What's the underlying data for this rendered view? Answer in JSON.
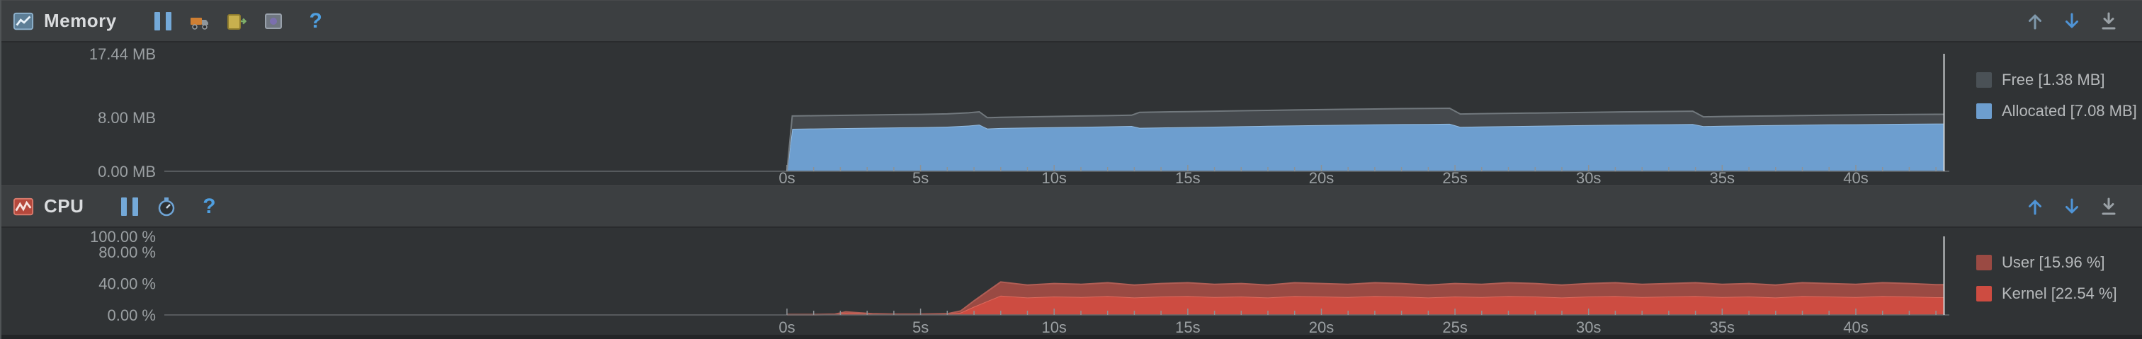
{
  "memory_panel": {
    "title": "Memory",
    "help_label": "?",
    "legend": [
      {
        "label": "Free [1.38 MB]",
        "color": "#4a5156"
      },
      {
        "label": "Allocated [7.08 MB]",
        "color": "#6d9ecf"
      }
    ]
  },
  "cpu_panel": {
    "title": "CPU",
    "help_label": "?",
    "legend": [
      {
        "label": "User [15.96 %]",
        "color": "#9a4a43"
      },
      {
        "label": "Kernel [22.54 %]",
        "color": "#cd4c41"
      }
    ]
  },
  "colors": {
    "header_bg": "#3c3f41",
    "chart_bg": "#303335",
    "axis_text": "#9ba0a3",
    "baseline": "#63686b",
    "tick": "#8d9296"
  },
  "chart_data": [
    {
      "type": "area",
      "title": "Memory",
      "ylabel": "MB",
      "stacked": true,
      "x_range": [
        -23.3,
        43.5
      ],
      "y_max": 17.44,
      "x_ticks_major": [
        0,
        5,
        10,
        15,
        20,
        25,
        30,
        35,
        40
      ],
      "x_tick_unit": "s",
      "x_minor_from": 0,
      "x_minor_to": 43,
      "y_ticks": [
        {
          "v": 17.44,
          "label": "17.44 MB"
        },
        {
          "v": 8,
          "label": "8.00 MB"
        },
        {
          "v": 0,
          "label": "0.00 MB"
        }
      ],
      "cursor_color": "#ced1d3",
      "t": [
        0,
        0.2,
        1,
        2,
        3,
        4,
        5,
        6,
        6.8,
        7.2,
        7.5,
        8,
        9,
        10,
        11,
        12,
        12.9,
        13.2,
        14,
        15,
        16,
        17,
        18,
        19,
        20,
        21,
        22,
        23,
        24,
        24.8,
        25.2,
        26,
        27,
        28,
        29,
        30,
        31,
        32,
        33,
        33.9,
        34.3,
        35,
        36,
        37,
        38,
        39,
        40,
        41,
        42,
        43,
        43.3
      ],
      "series": [
        {
          "name": "Allocated",
          "current": "7.08 MB",
          "color": "#6d9ecf",
          "stroke": "#93bce2",
          "values": [
            0,
            6.3,
            6.35,
            6.4,
            6.45,
            6.5,
            6.55,
            6.62,
            6.78,
            6.92,
            6.35,
            6.42,
            6.48,
            6.54,
            6.6,
            6.66,
            6.72,
            6.45,
            6.5,
            6.56,
            6.62,
            6.68,
            6.74,
            6.8,
            6.85,
            6.9,
            6.95,
            7.0,
            7.02,
            7.05,
            6.6,
            6.65,
            6.7,
            6.75,
            6.8,
            6.85,
            6.9,
            6.94,
            6.98,
            7.02,
            6.7,
            6.75,
            6.8,
            6.85,
            6.9,
            6.95,
            6.98,
            7.02,
            7.05,
            7.08,
            7.08
          ]
        },
        {
          "name": "Free",
          "current": "1.38 MB",
          "color": "#45494d",
          "stroke": "#71787d",
          "values": [
            0,
            1.9,
            1.9,
            1.9,
            1.9,
            1.9,
            1.9,
            1.9,
            1.9,
            1.9,
            1.6,
            1.6,
            1.6,
            1.6,
            1.6,
            1.6,
            1.6,
            2.3,
            2.3,
            2.3,
            2.3,
            2.3,
            2.3,
            2.3,
            2.3,
            2.3,
            2.3,
            2.3,
            2.3,
            2.3,
            1.9,
            1.9,
            1.9,
            1.9,
            1.9,
            1.9,
            1.9,
            1.9,
            1.9,
            1.9,
            1.38,
            1.38,
            1.38,
            1.38,
            1.38,
            1.38,
            1.38,
            1.38,
            1.38,
            1.38,
            1.38
          ]
        }
      ]
    },
    {
      "type": "area",
      "title": "CPU",
      "ylabel": "%",
      "stacked": true,
      "x_range": [
        -23.3,
        43.5
      ],
      "y_max": 100,
      "x_ticks_major": [
        0,
        5,
        10,
        15,
        20,
        25,
        30,
        35,
        40
      ],
      "x_tick_unit": "s",
      "x_minor_from": 0,
      "x_minor_to": 43,
      "y_ticks": [
        {
          "v": 100,
          "label": "100.00 %"
        },
        {
          "v": 80,
          "label": "80.00 %"
        },
        {
          "v": 40,
          "label": "40.00 %"
        },
        {
          "v": 0,
          "label": "0.00 %"
        }
      ],
      "cursor_color": "#ced1d3",
      "t": [
        0,
        1,
        1.8,
        2.2,
        2.6,
        3.2,
        4,
        5,
        6,
        6.5,
        7,
        7.5,
        8,
        9,
        10,
        11,
        12,
        13,
        14,
        15,
        16,
        17,
        18,
        19,
        20,
        21,
        22,
        23,
        24,
        25,
        26,
        27,
        28,
        29,
        30,
        31,
        32,
        33,
        34,
        35,
        36,
        37,
        38,
        39,
        40,
        41,
        42,
        43,
        43.3
      ],
      "series": [
        {
          "name": "Kernel",
          "current": "22.54 %",
          "color": "#cd4c41",
          "stroke": "#de6a5d",
          "values": [
            0.3,
            0.3,
            0.6,
            2.3,
            1.8,
            0.9,
            0.6,
            0.6,
            0.9,
            2.9,
            10.5,
            17.6,
            24.6,
            22.2,
            23.4,
            22.8,
            24,
            22.2,
            23.4,
            24,
            22.8,
            23.4,
            22.2,
            24,
            23.4,
            22.8,
            24,
            23.4,
            22.2,
            23.4,
            22.8,
            24,
            23.4,
            22.2,
            23.4,
            24,
            22.8,
            23.4,
            24,
            22.8,
            23.4,
            22.2,
            24,
            23.4,
            22.8,
            24,
            23.4,
            22.54,
            22.54
          ]
        },
        {
          "name": "User",
          "current": "15.96 %",
          "color": "#9a4a43",
          "stroke": "#b05e55",
          "values": [
            0.2,
            0.2,
            0.4,
            1.7,
            1.2,
            0.6,
            0.4,
            0.4,
            0.6,
            2.1,
            7.5,
            12.4,
            17.4,
            15.8,
            16.6,
            16.2,
            17,
            15.8,
            16.6,
            17,
            16.2,
            16.6,
            15.8,
            17,
            16.6,
            16.2,
            17,
            16.6,
            15.8,
            16.6,
            16.2,
            17,
            16.6,
            15.8,
            16.6,
            17,
            16.2,
            16.6,
            17,
            16.2,
            16.6,
            15.8,
            17,
            16.6,
            16.2,
            17,
            16.6,
            15.96,
            15.96
          ]
        }
      ]
    }
  ]
}
